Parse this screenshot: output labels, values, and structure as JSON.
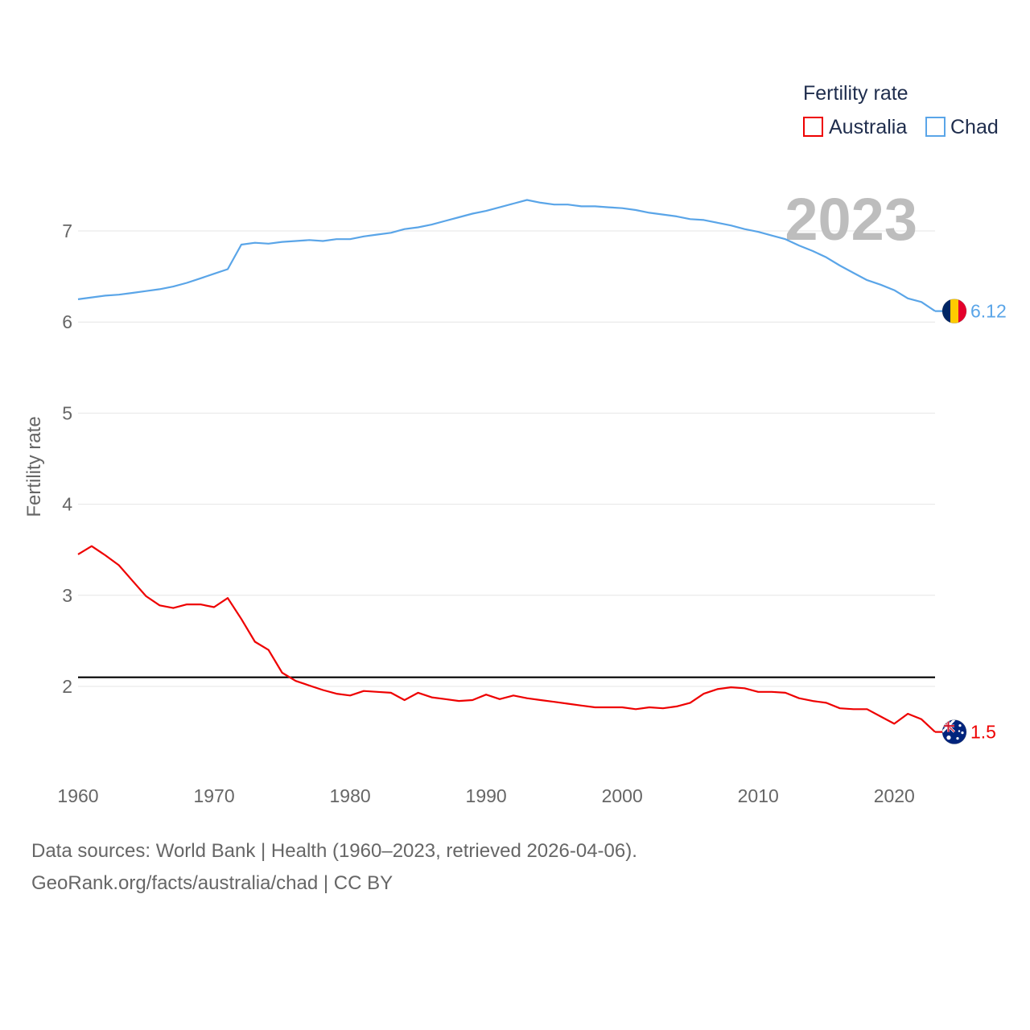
{
  "chart_data": {
    "type": "line",
    "title": "",
    "year_label": "2023",
    "xlabel": "",
    "ylabel": "Fertility rate",
    "xlim": [
      1960,
      2023
    ],
    "ylim": [
      1.0,
      7.7
    ],
    "x_ticks": [
      1960,
      1970,
      1980,
      1990,
      2000,
      2010,
      2020
    ],
    "y_ticks": [
      2,
      3,
      4,
      5,
      6,
      7
    ],
    "legend": {
      "title": "Fertility rate",
      "position": "top-right"
    },
    "reference_line": {
      "y": 2.1,
      "color": "#000000"
    },
    "x": [
      1960,
      1961,
      1962,
      1963,
      1964,
      1965,
      1966,
      1967,
      1968,
      1969,
      1970,
      1971,
      1972,
      1973,
      1974,
      1975,
      1976,
      1977,
      1978,
      1979,
      1980,
      1981,
      1982,
      1983,
      1984,
      1985,
      1986,
      1987,
      1988,
      1989,
      1990,
      1991,
      1992,
      1993,
      1994,
      1995,
      1996,
      1997,
      1998,
      1999,
      2000,
      2001,
      2002,
      2003,
      2004,
      2005,
      2006,
      2007,
      2008,
      2009,
      2010,
      2011,
      2012,
      2013,
      2014,
      2015,
      2016,
      2017,
      2018,
      2019,
      2020,
      2021,
      2022,
      2023
    ],
    "series": [
      {
        "name": "Australia",
        "color": "#ee0000",
        "end_label": "1.5",
        "flag": "australia-flag",
        "values": [
          3.45,
          3.54,
          3.44,
          3.33,
          3.16,
          2.99,
          2.89,
          2.86,
          2.9,
          2.9,
          2.87,
          2.97,
          2.74,
          2.49,
          2.4,
          2.15,
          2.06,
          2.01,
          1.96,
          1.92,
          1.9,
          1.95,
          1.94,
          1.93,
          1.85,
          1.93,
          1.88,
          1.86,
          1.84,
          1.85,
          1.91,
          1.86,
          1.9,
          1.87,
          1.85,
          1.83,
          1.81,
          1.79,
          1.77,
          1.77,
          1.77,
          1.75,
          1.77,
          1.76,
          1.78,
          1.82,
          1.92,
          1.97,
          1.99,
          1.98,
          1.94,
          1.94,
          1.93,
          1.87,
          1.84,
          1.82,
          1.76,
          1.75,
          1.75,
          1.67,
          1.59,
          1.7,
          1.64,
          1.5
        ]
      },
      {
        "name": "Chad",
        "color": "#5aa5e8",
        "end_label": "6.12",
        "flag": "chad-flag",
        "values": [
          6.25,
          6.27,
          6.29,
          6.3,
          6.32,
          6.34,
          6.36,
          6.39,
          6.43,
          6.48,
          6.53,
          6.58,
          6.85,
          6.87,
          6.86,
          6.88,
          6.89,
          6.9,
          6.89,
          6.91,
          6.91,
          6.94,
          6.96,
          6.98,
          7.02,
          7.04,
          7.07,
          7.11,
          7.15,
          7.19,
          7.22,
          7.26,
          7.3,
          7.34,
          7.31,
          7.29,
          7.29,
          7.27,
          7.27,
          7.26,
          7.25,
          7.23,
          7.2,
          7.18,
          7.16,
          7.13,
          7.12,
          7.09,
          7.06,
          7.02,
          6.99,
          6.95,
          6.91,
          6.84,
          6.78,
          6.71,
          6.62,
          6.54,
          6.46,
          6.41,
          6.35,
          6.26,
          6.22,
          6.12
        ]
      }
    ]
  },
  "footer": {
    "sources": "Data sources: World Bank | Health (1960–2023, retrieved 2026-04-06).",
    "attribution": "GeoRank.org/facts/australia/chad | CC BY"
  }
}
